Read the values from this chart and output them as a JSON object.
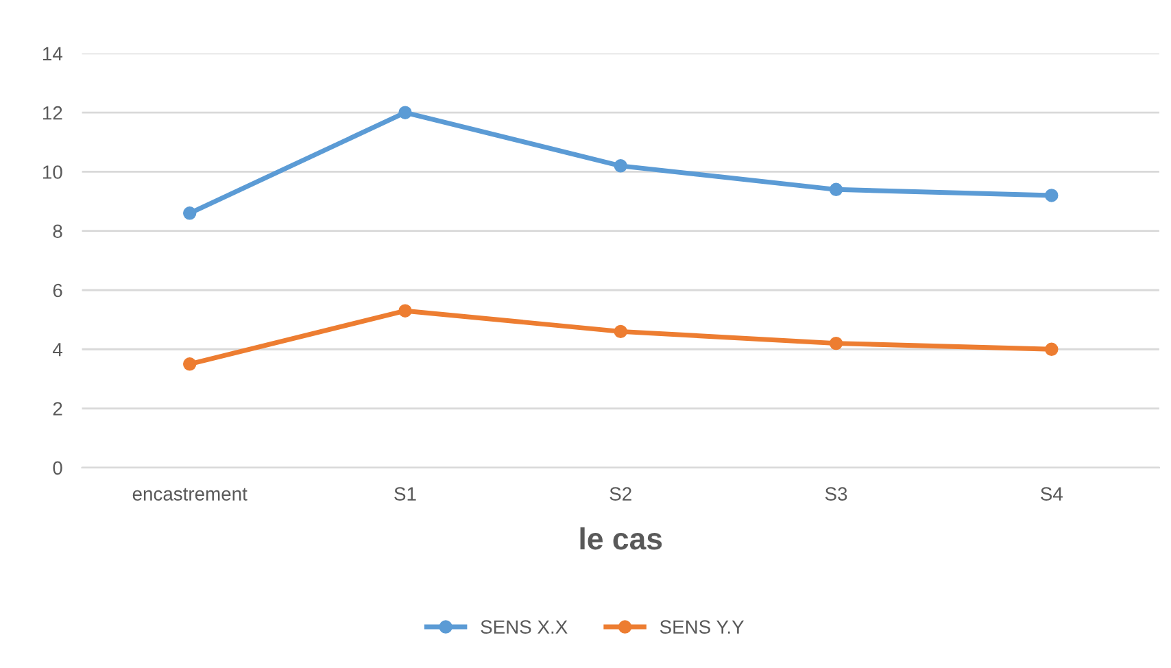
{
  "chart_data": {
    "type": "line",
    "xlabel": "le cas",
    "categories": [
      "encastrement",
      "S1",
      "S2",
      "S3",
      "S4"
    ],
    "series": [
      {
        "name": "SENS X.X",
        "color": "#5b9bd5",
        "values": [
          8.6,
          12.0,
          10.2,
          9.4,
          9.2
        ]
      },
      {
        "name": "SENS Y.Y",
        "color": "#ed7d31",
        "values": [
          3.5,
          5.3,
          4.6,
          4.2,
          4.0
        ]
      }
    ],
    "ylim": [
      0,
      14
    ],
    "yticks": [
      0,
      2,
      4,
      6,
      8,
      10,
      12,
      14
    ],
    "grid": "y",
    "legend": "bottom",
    "marker": "circle",
    "line_style": "solid"
  }
}
